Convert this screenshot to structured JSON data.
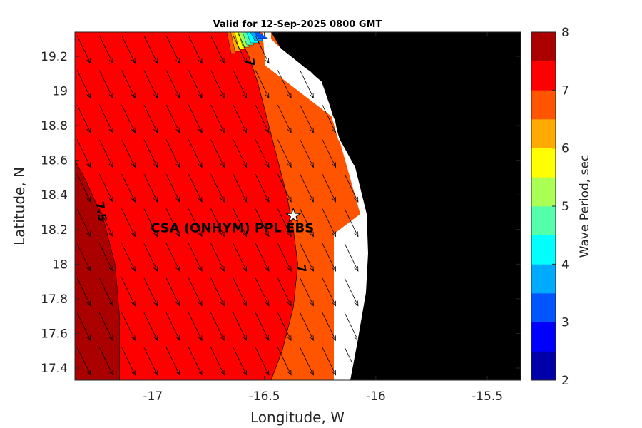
{
  "chart_data": {
    "type": "heatmap",
    "title": "Valid for 12-Sep-2025 0800 GMT",
    "xlabel": "Longitude, W",
    "ylabel": "Latitude, N",
    "xlim": [
      -17.35,
      -15.35
    ],
    "ylim": [
      17.33,
      19.34
    ],
    "xticks": [
      -17,
      -16.5,
      -16,
      -15.5
    ],
    "xtick_labels": [
      "-17",
      "-16.5",
      "-16",
      "-15.5"
    ],
    "yticks": [
      17.4,
      17.6,
      17.8,
      18,
      18.2,
      18.4,
      18.6,
      18.8,
      19,
      19.2
    ],
    "ytick_labels": [
      "17.4",
      "17.6",
      "17.8",
      "18",
      "18.2",
      "18.4",
      "18.6",
      "18.8",
      "19",
      "19.2"
    ],
    "colorbar": {
      "label": "Wave Period, sec",
      "range": [
        2,
        8
      ],
      "ticks": [
        2,
        3,
        4,
        5,
        6,
        7,
        8
      ],
      "tick_labels": [
        "2",
        "3",
        "4",
        "5",
        "6",
        "7",
        "8"
      ],
      "levels": [
        {
          "from": 2.0,
          "to": 2.5,
          "color": "#0000aa"
        },
        {
          "from": 2.5,
          "to": 3.0,
          "color": "#0000ff"
        },
        {
          "from": 3.0,
          "to": 3.5,
          "color": "#0055ff"
        },
        {
          "from": 3.5,
          "to": 4.0,
          "color": "#00aaff"
        },
        {
          "from": 4.0,
          "to": 4.5,
          "color": "#00ffff"
        },
        {
          "from": 4.5,
          "to": 5.0,
          "color": "#55ffaa"
        },
        {
          "from": 5.0,
          "to": 5.5,
          "color": "#aaff55"
        },
        {
          "from": 5.5,
          "to": 6.0,
          "color": "#ffff00"
        },
        {
          "from": 6.0,
          "to": 6.5,
          "color": "#ffaa00"
        },
        {
          "from": 6.5,
          "to": 7.0,
          "color": "#ff5500"
        },
        {
          "from": 7.0,
          "to": 7.5,
          "color": "#ff0000"
        },
        {
          "from": 7.5,
          "to": 8.0,
          "color": "#aa0000"
        }
      ]
    },
    "regions": [
      {
        "period_range": [
          7.5,
          8.0
        ],
        "color": "#aa0000",
        "boundary": [
          [
            -17.35,
            18.6
          ],
          [
            -17.3,
            18.48
          ],
          [
            -17.22,
            18.25
          ],
          [
            -17.17,
            18.0
          ],
          [
            -17.15,
            17.7
          ],
          [
            -17.15,
            17.33
          ]
        ]
      },
      {
        "period_range": [
          7.0,
          7.5
        ],
        "color": "#ff0000",
        "boundary": [
          [
            -16.62,
            19.34
          ],
          [
            -16.57,
            19.2
          ],
          [
            -16.53,
            19.05
          ],
          [
            -16.48,
            18.8
          ],
          [
            -16.44,
            18.6
          ],
          [
            -16.4,
            18.4
          ],
          [
            -16.37,
            18.2
          ],
          [
            -16.35,
            18.0
          ],
          [
            -16.37,
            17.75
          ],
          [
            -16.42,
            17.5
          ],
          [
            -16.47,
            17.33
          ]
        ]
      },
      {
        "period_range": [
          6.5,
          7.0
        ],
        "color": "#ff5500",
        "boundary": [
          [
            -16.62,
            19.34
          ],
          [
            -16.57,
            19.2
          ],
          [
            -16.53,
            19.05
          ],
          [
            -16.48,
            18.8
          ],
          [
            -16.44,
            18.6
          ],
          [
            -16.4,
            18.4
          ],
          [
            -16.37,
            18.2
          ],
          [
            -16.35,
            18.0
          ],
          [
            -16.37,
            17.75
          ],
          [
            -16.42,
            17.5
          ],
          [
            -16.47,
            17.33
          ]
        ]
      }
    ],
    "contour_labels": [
      {
        "text": "7.5",
        "lon": -17.25,
        "lat": 18.3,
        "rotation": 80
      },
      {
        "text": "7",
        "lon": -16.58,
        "lat": 19.16,
        "rotation": 80
      },
      {
        "text": "7",
        "lon": -16.35,
        "lat": 17.97,
        "rotation": 80
      }
    ],
    "direction_arrows": {
      "description": "wave direction vectors pointing south-southeast",
      "color": "#000000",
      "dlon": 0.06,
      "dlat": -0.16
    }
  },
  "site": {
    "label": "CSA (ONHYM) PPL EBS",
    "lon": -16.37,
    "lat": 18.28
  },
  "colors": {
    "land": "#000000",
    "background": "#ffffff",
    "text": "#262626"
  }
}
